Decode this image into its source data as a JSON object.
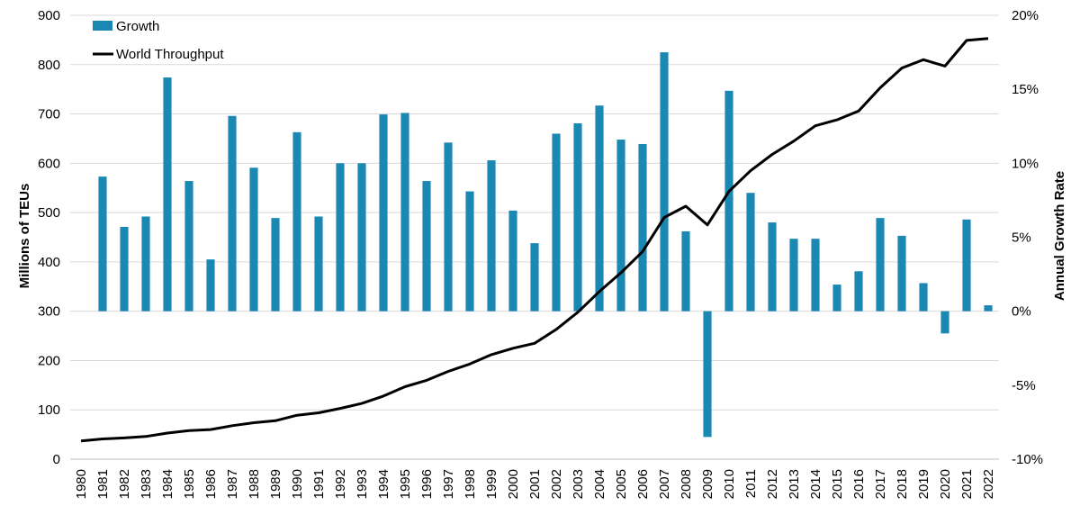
{
  "chart_data": {
    "type": "bar+line",
    "categories": [
      "1980",
      "1981",
      "1982",
      "1983",
      "1984",
      "1985",
      "1986",
      "1987",
      "1988",
      "1989",
      "1990",
      "1991",
      "1992",
      "1993",
      "1994",
      "1995",
      "1996",
      "1997",
      "1998",
      "1999",
      "2000",
      "2001",
      "2002",
      "2003",
      "2004",
      "2005",
      "2006",
      "2007",
      "2008",
      "2009",
      "2010",
      "2011",
      "2012",
      "2013",
      "2014",
      "2015",
      "2016",
      "2017",
      "2018",
      "2019",
      "2020",
      "2021",
      "2022"
    ],
    "series": [
      {
        "name": "Growth",
        "kind": "bar",
        "axis": "right",
        "color": "#1b87b3",
        "values": [
          null,
          9.1,
          5.7,
          6.4,
          15.8,
          8.8,
          3.5,
          13.2,
          9.7,
          6.3,
          12.1,
          6.4,
          10.0,
          10.0,
          13.3,
          13.4,
          8.8,
          11.4,
          8.1,
          10.2,
          6.8,
          4.6,
          12.0,
          12.7,
          13.9,
          11.6,
          11.3,
          17.5,
          5.4,
          -8.5,
          14.9,
          8.0,
          6.0,
          4.9,
          4.9,
          1.8,
          2.7,
          6.3,
          5.1,
          1.9,
          -1.5,
          6.2,
          0.4
        ]
      },
      {
        "name": "World Throughput",
        "kind": "line",
        "axis": "left",
        "color": "#000000",
        "values": [
          37,
          41,
          43,
          46,
          53,
          58,
          60,
          68,
          74,
          78,
          89,
          94,
          103,
          113,
          128,
          147,
          160,
          178,
          193,
          212,
          225,
          235,
          263,
          298,
          340,
          378,
          421,
          490,
          513,
          475,
          543,
          585,
          618,
          645,
          676,
          688,
          706,
          753,
          793,
          810,
          797,
          849,
          853
        ]
      }
    ],
    "y_left": {
      "label": "Millions of TEUs",
      "ylim": [
        0,
        900
      ],
      "ticks": [
        "0",
        "100",
        "200",
        "300",
        "400",
        "500",
        "600",
        "700",
        "800",
        "900"
      ]
    },
    "y_right": {
      "label": "Annual Growth Rate",
      "ylim": [
        -10,
        20
      ],
      "ticks": [
        "-10%",
        "-5%",
        "0%",
        "5%",
        "10%",
        "15%",
        "20%"
      ]
    },
    "grid": true,
    "legend_position": "top-left"
  }
}
